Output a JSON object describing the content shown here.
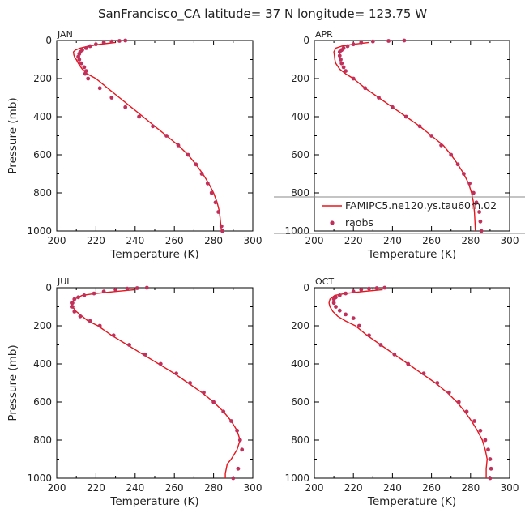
{
  "figure": {
    "title": "SanFrancisco_CA  latitude= 37 N longitude= 123.75 W",
    "x_axis_label": "Temperature (K)",
    "y_axis_label": "Pressure (mb)",
    "legend": [
      "FAMIPC5.ne120.ys.tau60m.02",
      "raobs"
    ],
    "legend_panel": "APR",
    "colors": {
      "model_line": "#e8141c",
      "obs_points": "#c0305a",
      "axes": "#000000",
      "legend_box": "#888888"
    }
  },
  "chart_data": [
    {
      "type": "line",
      "panel": "JAN",
      "xlim": [
        200,
        300
      ],
      "ylim": [
        1000,
        0
      ],
      "xticks": [
        "200",
        "220",
        "240",
        "260",
        "280",
        "300"
      ],
      "yticks": [
        "0",
        "200",
        "400",
        "600",
        "800",
        "1000"
      ],
      "series": [
        {
          "name": "FAMIPC5.ne120.ys.tau60m.02",
          "style": "line",
          "x": [
            230,
            222,
            216,
            212,
            209.5,
            208.5,
            208.7,
            209.2,
            210,
            211,
            213,
            215.5,
            220,
            226,
            232,
            238,
            244,
            250,
            256,
            262,
            267,
            271,
            274.5,
            277.5,
            280,
            281.8,
            283,
            284
          ],
          "y": [
            10,
            20,
            30,
            40,
            50,
            60,
            75,
            90,
            100,
            120,
            150,
            175,
            200,
            250,
            300,
            350,
            400,
            450,
            500,
            550,
            600,
            650,
            700,
            750,
            800,
            850,
            900,
            1000
          ]
        },
        {
          "name": "raobs",
          "style": "points",
          "x": [
            235,
            232,
            228,
            224,
            220,
            217,
            215,
            213,
            212,
            211.5,
            211,
            211.5,
            212.5,
            214,
            215,
            214.5,
            216,
            222,
            228,
            235,
            242,
            249,
            256,
            262,
            267,
            271,
            274,
            277,
            279,
            281,
            282.5,
            284,
            284.5
          ],
          "y": [
            0,
            2,
            5,
            10,
            20,
            30,
            40,
            50,
            60,
            70,
            85,
            100,
            120,
            140,
            160,
            175,
            200,
            250,
            300,
            350,
            400,
            450,
            500,
            550,
            600,
            650,
            700,
            750,
            800,
            850,
            900,
            975,
            1000
          ]
        }
      ]
    },
    {
      "type": "line",
      "panel": "APR",
      "xlim": [
        200,
        300
      ],
      "ylim": [
        1000,
        0
      ],
      "xticks": [
        "200",
        "220",
        "240",
        "260",
        "280",
        "300"
      ],
      "yticks": [
        "0",
        "200",
        "400",
        "600",
        "800",
        "1000"
      ],
      "series": [
        {
          "name": "FAMIPC5.ne120.ys.tau60m.02",
          "style": "line",
          "x": [
            228,
            220,
            214,
            211,
            210,
            210.3,
            210.5,
            211,
            213,
            216,
            220,
            226,
            233,
            240,
            247,
            254,
            260,
            266,
            270,
            273.5,
            276.5,
            279,
            280.5,
            281.5,
            282,
            282.5
          ],
          "y": [
            10,
            20,
            30,
            40,
            60,
            80,
            100,
            120,
            150,
            175,
            200,
            250,
            300,
            350,
            400,
            450,
            500,
            550,
            600,
            650,
            700,
            750,
            800,
            850,
            900,
            1000
          ]
        },
        {
          "name": "raobs",
          "style": "points",
          "x": [
            246,
            238,
            230,
            224,
            220,
            217,
            215,
            214,
            213,
            213,
            213.5,
            214,
            215,
            216,
            220,
            226,
            233,
            240,
            247,
            254,
            260,
            265,
            270,
            273.5,
            276.5,
            279.5,
            281.5,
            283,
            284.5,
            285,
            285.5
          ],
          "y": [
            0,
            2,
            5,
            10,
            20,
            30,
            40,
            50,
            60,
            80,
            100,
            120,
            140,
            160,
            200,
            250,
            300,
            350,
            400,
            450,
            500,
            550,
            600,
            650,
            700,
            750,
            800,
            850,
            900,
            950,
            1000
          ]
        }
      ]
    },
    {
      "type": "line",
      "panel": "JUL",
      "xlim": [
        200,
        300
      ],
      "ylim": [
        1000,
        0
      ],
      "xticks": [
        "200",
        "220",
        "240",
        "260",
        "280",
        "300"
      ],
      "yticks": [
        "0",
        "200",
        "400",
        "600",
        "800",
        "1000"
      ],
      "series": [
        {
          "name": "FAMIPC5.ne120.ys.tau60m.02",
          "style": "line",
          "x": [
            240,
            230,
            220,
            213,
            209,
            207.5,
            208,
            210,
            213,
            216,
            221,
            228,
            236,
            244,
            252,
            260,
            267,
            274,
            280,
            285,
            289,
            292,
            293.5,
            292,
            289,
            287,
            286.5,
            286,
            286
          ],
          "y": [
            10,
            20,
            30,
            40,
            60,
            80,
            100,
            125,
            150,
            175,
            200,
            250,
            300,
            350,
            400,
            450,
            500,
            550,
            600,
            650,
            700,
            750,
            800,
            850,
            900,
            925,
            950,
            975,
            1000
          ]
        },
        {
          "name": "raobs",
          "style": "points",
          "x": [
            246,
            241,
            236,
            230,
            224,
            219,
            214,
            211,
            209,
            208,
            208,
            209,
            212,
            217,
            222,
            229,
            237,
            245,
            253,
            261,
            268,
            275,
            280,
            285,
            289,
            292,
            293.5,
            294.5,
            292.5,
            290
          ],
          "y": [
            0,
            2,
            5,
            10,
            20,
            30,
            40,
            50,
            60,
            80,
            100,
            125,
            150,
            175,
            200,
            250,
            300,
            350,
            400,
            450,
            500,
            550,
            600,
            650,
            700,
            750,
            800,
            850,
            950,
            1000
          ]
        }
      ]
    },
    {
      "type": "line",
      "panel": "OCT",
      "xlim": [
        200,
        300
      ],
      "ylim": [
        1000,
        0
      ],
      "xticks": [
        "200",
        "220",
        "240",
        "260",
        "280",
        "300"
      ],
      "yticks": [
        "0",
        "200",
        "400",
        "600",
        "800",
        "1000"
      ],
      "series": [
        {
          "name": "FAMIPC5.ne120.ys.tau60m.02",
          "style": "line",
          "x": [
            235,
            225,
            216,
            210.5,
            208,
            207.5,
            208,
            209.5,
            212,
            216,
            221,
            227,
            234,
            241,
            248,
            255,
            262,
            268,
            273,
            277,
            280.5,
            283.5,
            286,
            287.5,
            288.5,
            288,
            288
          ],
          "y": [
            10,
            20,
            30,
            40,
            60,
            80,
            100,
            125,
            150,
            175,
            200,
            250,
            300,
            350,
            400,
            450,
            500,
            550,
            600,
            650,
            700,
            750,
            800,
            850,
            900,
            950,
            1000
          ]
        },
        {
          "name": "raobs",
          "style": "points",
          "x": [
            236,
            232,
            228,
            224,
            220,
            216,
            213,
            211,
            210,
            210,
            211,
            213,
            216,
            220,
            223,
            228,
            234,
            241,
            248,
            256,
            263,
            269,
            274,
            278,
            282,
            285,
            287.5,
            289,
            290,
            290.5,
            290
          ],
          "y": [
            0,
            2,
            5,
            10,
            20,
            30,
            40,
            50,
            60,
            80,
            100,
            120,
            140,
            160,
            200,
            250,
            300,
            350,
            400,
            450,
            500,
            550,
            600,
            650,
            700,
            750,
            800,
            850,
            900,
            950,
            1000
          ]
        }
      ]
    }
  ]
}
